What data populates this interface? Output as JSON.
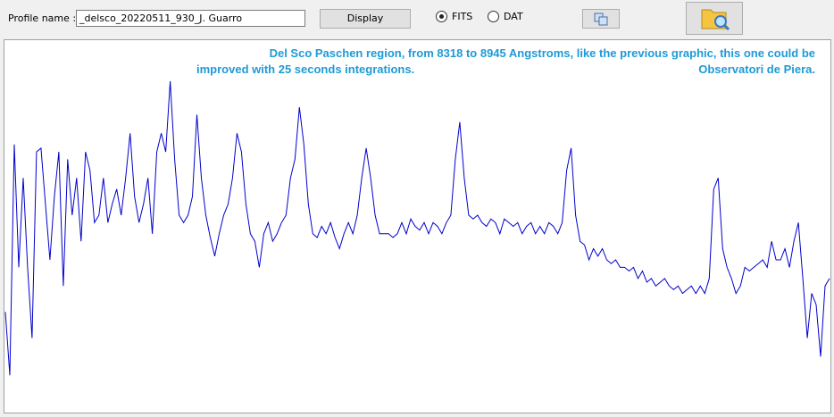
{
  "toolbar": {
    "profile_label": "Profile name :",
    "profile_name": "_delsco_20220511_930_J. Guarro",
    "display_button": "Display",
    "radio_options": [
      {
        "label": "FITS",
        "checked": true
      },
      {
        "label": "DAT",
        "checked": false
      }
    ]
  },
  "chart_data": {
    "type": "line",
    "annotations": [
      "Del Sco Paschen region, from 8318 to 8945 Angstroms, like the previous graphic, this one could be",
      "improved with 25 seconds integrations.",
      "Observatori de Piera."
    ],
    "color": "#0000cc",
    "ylim": [
      0,
      1
    ],
    "values": [
      0.27,
      0.1,
      0.72,
      0.39,
      0.63,
      0.39,
      0.2,
      0.7,
      0.71,
      0.56,
      0.41,
      0.58,
      0.7,
      0.34,
      0.68,
      0.53,
      0.63,
      0.46,
      0.7,
      0.65,
      0.51,
      0.53,
      0.63,
      0.51,
      0.56,
      0.6,
      0.53,
      0.63,
      0.75,
      0.58,
      0.51,
      0.56,
      0.63,
      0.48,
      0.7,
      0.75,
      0.7,
      0.89,
      0.68,
      0.53,
      0.51,
      0.53,
      0.58,
      0.8,
      0.63,
      0.53,
      0.47,
      0.42,
      0.48,
      0.53,
      0.56,
      0.63,
      0.75,
      0.7,
      0.56,
      0.48,
      0.46,
      0.39,
      0.48,
      0.51,
      0.46,
      0.48,
      0.51,
      0.53,
      0.63,
      0.68,
      0.82,
      0.72,
      0.56,
      0.48,
      0.47,
      0.5,
      0.48,
      0.51,
      0.47,
      0.44,
      0.48,
      0.51,
      0.48,
      0.53,
      0.63,
      0.71,
      0.63,
      0.53,
      0.48,
      0.48,
      0.48,
      0.47,
      0.48,
      0.51,
      0.48,
      0.52,
      0.5,
      0.49,
      0.51,
      0.48,
      0.51,
      0.5,
      0.48,
      0.51,
      0.53,
      0.68,
      0.78,
      0.63,
      0.53,
      0.52,
      0.53,
      0.51,
      0.5,
      0.52,
      0.51,
      0.48,
      0.52,
      0.51,
      0.5,
      0.51,
      0.48,
      0.5,
      0.51,
      0.48,
      0.5,
      0.48,
      0.51,
      0.5,
      0.48,
      0.51,
      0.65,
      0.71,
      0.53,
      0.46,
      0.45,
      0.41,
      0.44,
      0.42,
      0.44,
      0.41,
      0.4,
      0.41,
      0.39,
      0.39,
      0.38,
      0.39,
      0.36,
      0.38,
      0.35,
      0.36,
      0.34,
      0.35,
      0.36,
      0.34,
      0.33,
      0.34,
      0.32,
      0.33,
      0.34,
      0.32,
      0.34,
      0.32,
      0.36,
      0.6,
      0.63,
      0.44,
      0.39,
      0.36,
      0.32,
      0.34,
      0.39,
      0.38,
      0.39,
      0.4,
      0.41,
      0.39,
      0.46,
      0.41,
      0.41,
      0.44,
      0.39,
      0.46,
      0.51,
      0.36,
      0.2,
      0.32,
      0.29,
      0.15,
      0.34,
      0.36
    ]
  }
}
